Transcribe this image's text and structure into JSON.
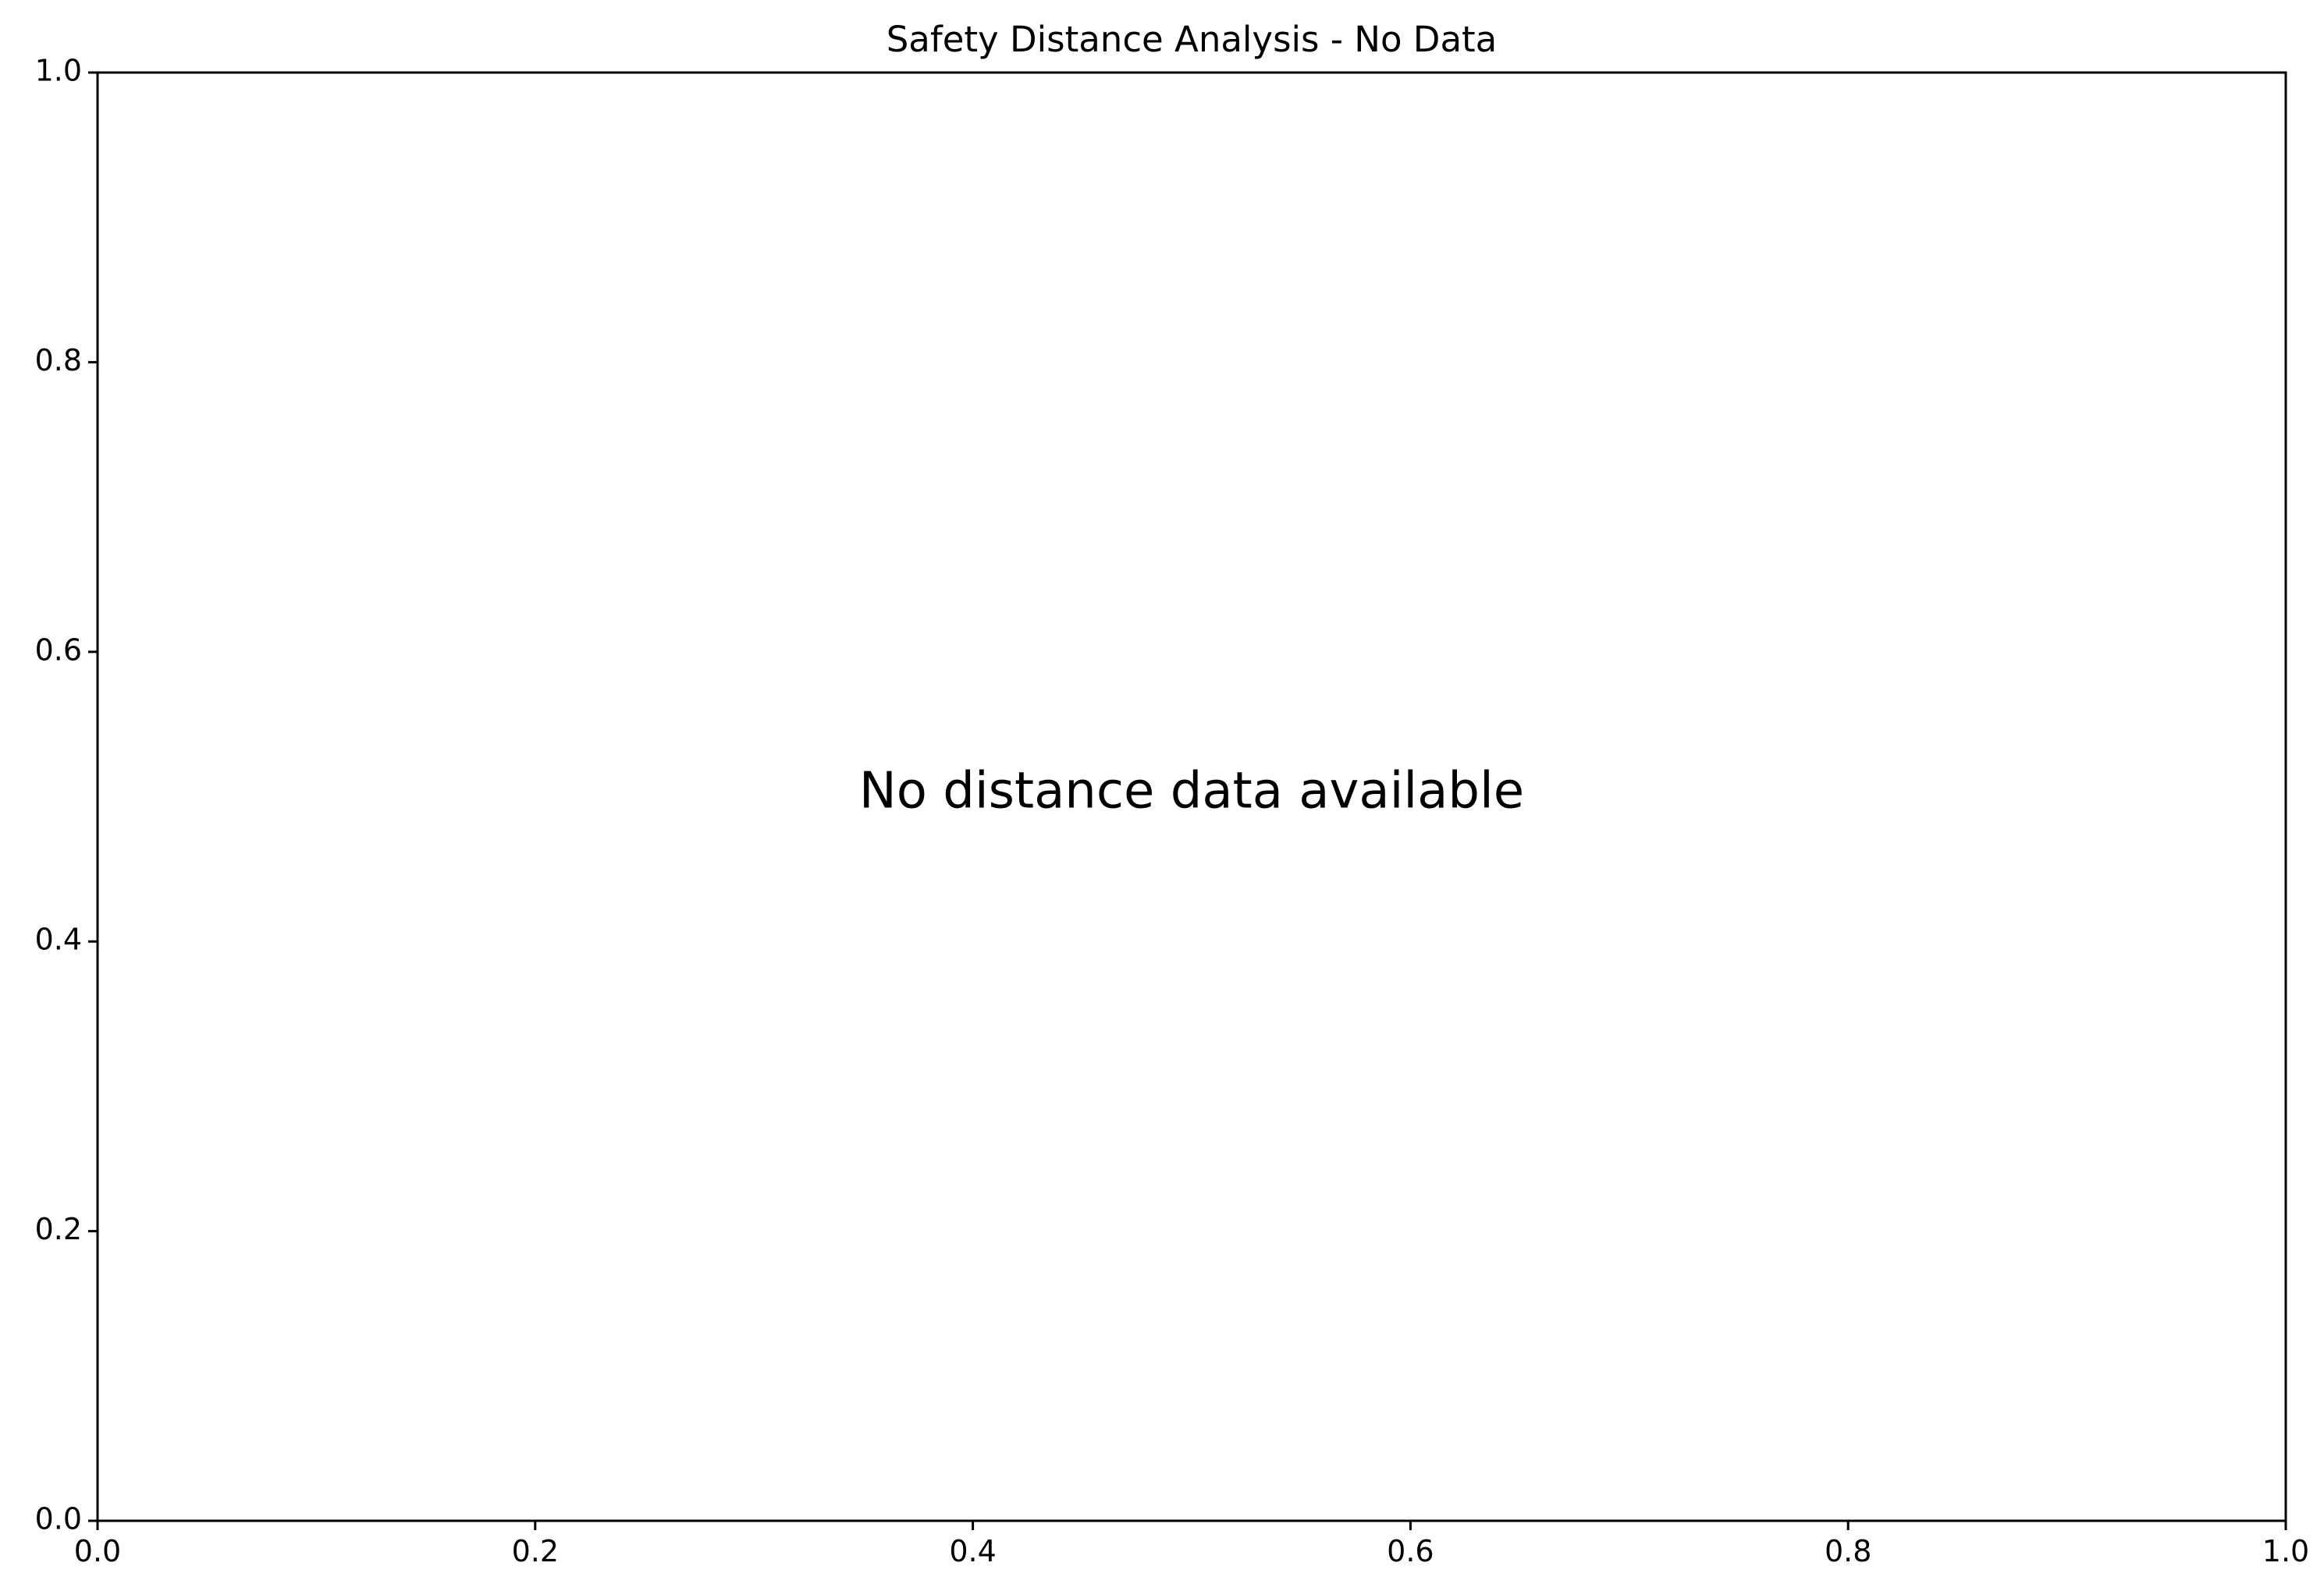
{
  "chart_data": {
    "type": "scatter",
    "title": "Safety Distance Analysis - No Data",
    "xlabel": "",
    "ylabel": "",
    "xlim": [
      0.0,
      1.0
    ],
    "ylim": [
      0.0,
      1.0
    ],
    "x_ticks": [
      "0.0",
      "0.2",
      "0.4",
      "0.6",
      "0.8",
      "1.0"
    ],
    "y_ticks": [
      "0.0",
      "0.2",
      "0.4",
      "0.6",
      "0.8",
      "1.0"
    ],
    "series": [],
    "annotation": "No distance data available",
    "grid": false
  }
}
